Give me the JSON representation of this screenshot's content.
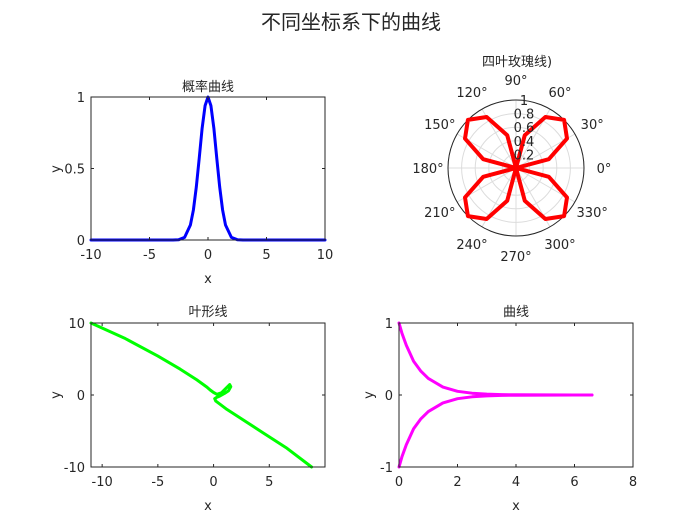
{
  "figure_title": "不同坐标系下的曲线",
  "chart_data": [
    {
      "type": "line",
      "title": "概率曲线",
      "xlabel": "x",
      "ylabel": "y",
      "xlim": [
        -10,
        10
      ],
      "ylim": [
        0,
        1
      ],
      "xticks": [
        -10,
        -5,
        0,
        5,
        10
      ],
      "yticks": [
        0,
        0.5,
        1
      ],
      "xtick_labels": [
        "-10",
        "-5",
        "0",
        "5",
        "10"
      ],
      "ytick_labels": [
        "0",
        "0.5",
        "1"
      ],
      "grid": false,
      "series": [
        {
          "color": "#0000ff",
          "x": [
            -10,
            -3,
            -2.5,
            -2,
            -1.5,
            -1.25,
            -1,
            -0.75,
            -0.5,
            -0.25,
            0,
            0.25,
            0.5,
            0.75,
            1,
            1.25,
            1.5,
            2,
            2.5,
            3,
            10
          ],
          "y": [
            0,
            0.0001,
            0.002,
            0.018,
            0.105,
            0.21,
            0.37,
            0.57,
            0.78,
            0.94,
            1,
            0.94,
            0.78,
            0.57,
            0.37,
            0.21,
            0.105,
            0.018,
            0.002,
            0.0001,
            0
          ]
        }
      ]
    },
    {
      "type": "polar",
      "title": "四叶玫瑰线)",
      "angle_ticks_deg": [
        0,
        30,
        60,
        90,
        120,
        150,
        180,
        210,
        240,
        270,
        300,
        330
      ],
      "angle_tick_labels": [
        "0°",
        "30°",
        "60°",
        "90°",
        "120°",
        "150°",
        "180°",
        "210°",
        "240°",
        "270°",
        "300°",
        "330°"
      ],
      "radial_ticks": [
        0.2,
        0.4,
        0.6,
        0.8,
        1
      ],
      "radial_tick_labels": [
        "0.2",
        "0.4",
        "0.6",
        "0.8",
        "1"
      ],
      "rlim": [
        0,
        1
      ],
      "grid": true,
      "series": [
        {
          "color": "#ff0000",
          "theta_deg": [
            0,
            15,
            30,
            45,
            60,
            75,
            90,
            105,
            120,
            135,
            150,
            165,
            180,
            195,
            210,
            225,
            240,
            255,
            270,
            285,
            300,
            315,
            330,
            345,
            360
          ],
          "r": [
            0,
            0.5,
            0.866,
            1,
            0.866,
            0.5,
            0,
            0.5,
            0.866,
            1,
            0.866,
            0.5,
            0,
            0.5,
            0.866,
            1,
            0.866,
            0.5,
            0,
            0.5,
            0.866,
            1,
            0.866,
            0.5,
            0
          ]
        }
      ]
    },
    {
      "type": "line",
      "title": "叶形线",
      "xlabel": "x",
      "ylabel": "y",
      "xlim": [
        -11,
        10
      ],
      "ylim": [
        -10,
        10
      ],
      "xticks": [
        -10,
        -5,
        0,
        5
      ],
      "yticks": [
        -10,
        0,
        10
      ],
      "xtick_labels": [
        "-10",
        "-5",
        "0",
        "5"
      ],
      "ytick_labels": [
        "-10",
        "0",
        "10"
      ],
      "grid": false,
      "series": [
        {
          "color": "#00ff00",
          "x": [
            -11,
            -8,
            -5,
            -3,
            -1.5,
            -0.6,
            -0.3,
            0,
            0.3,
            0.7,
            1.1,
            1.45,
            1.55,
            1.35,
            0.95,
            0.55,
            0.25,
            0.1,
            0.2,
            0.6,
            1.2,
            2.5,
            4.5,
            6.5,
            8.8
          ],
          "y": [
            10,
            7.9,
            5.4,
            3.6,
            2.1,
            1.1,
            0.7,
            0.35,
            0.1,
            0.3,
            0.9,
            1.45,
            1.15,
            0.6,
            0.2,
            -0.15,
            -0.35,
            -0.5,
            -0.85,
            -1.3,
            -2,
            -3.3,
            -5.3,
            -7.3,
            -10
          ]
        }
      ]
    },
    {
      "type": "line",
      "title": "曲线",
      "xlabel": "x",
      "ylabel": "y",
      "xlim": [
        0,
        8
      ],
      "ylim": [
        -1,
        1
      ],
      "xticks": [
        0,
        2,
        4,
        6,
        8
      ],
      "yticks": [
        -1,
        0,
        1
      ],
      "xtick_labels": [
        "0",
        "2",
        "4",
        "6",
        "8"
      ],
      "ytick_labels": [
        "-1",
        "0",
        "1"
      ],
      "grid": false,
      "series": [
        {
          "color": "#ff00ff",
          "x": [
            0,
            0.1,
            0.25,
            0.5,
            0.75,
            1,
            1.5,
            2,
            2.5,
            3,
            3.5,
            4,
            5,
            6,
            6.6
          ],
          "y": [
            1,
            0.86,
            0.69,
            0.47,
            0.33,
            0.23,
            0.11,
            0.052,
            0.025,
            0.012,
            0.006,
            0.003,
            0.0008,
            0.0002,
            0.0001
          ]
        },
        {
          "color": "#ff00ff",
          "x": [
            0,
            0.1,
            0.25,
            0.5,
            0.75,
            1,
            1.5,
            2,
            2.5,
            3,
            3.5,
            4,
            5,
            6,
            6.6
          ],
          "y": [
            -1,
            -0.86,
            -0.69,
            -0.47,
            -0.33,
            -0.23,
            -0.11,
            -0.052,
            -0.025,
            -0.012,
            -0.006,
            -0.003,
            -0.0008,
            -0.0002,
            -0.0001
          ]
        }
      ]
    }
  ]
}
